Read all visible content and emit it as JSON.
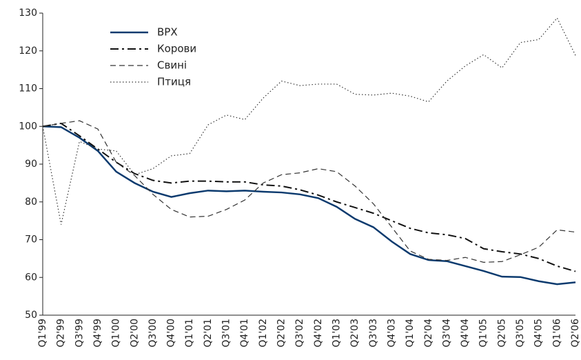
{
  "chart_data": {
    "type": "line",
    "categories": [
      "Q1'99",
      "Q2'99",
      "Q3'99",
      "Q4'99",
      "Q1'00",
      "Q2'00",
      "Q3'00",
      "Q4'00",
      "Q1'01",
      "Q2'01",
      "Q3'01",
      "Q4'01",
      "Q1'02",
      "Q2'02",
      "Q3'02",
      "Q4'02",
      "Q1'03",
      "Q2'03",
      "Q3'03",
      "Q4'03",
      "Q1'04",
      "Q2'04",
      "Q3'04",
      "Q4'04",
      "Q1'05",
      "Q2'05",
      "Q3'05",
      "Q4'05",
      "Q1'06",
      "Q2'06"
    ],
    "ylim": [
      50,
      130
    ],
    "yticks": [
      50,
      60,
      70,
      80,
      90,
      100,
      110,
      120,
      130
    ],
    "series": [
      {
        "name": "ВРХ",
        "color": "#0b3a6e",
        "style": "solid",
        "values": [
          100,
          99.8,
          97,
          93.5,
          88,
          85,
          82.7,
          81.3,
          82.3,
          83,
          82.8,
          83,
          82.7,
          82.5,
          82,
          81,
          78.7,
          75.5,
          73.3,
          69.5,
          66.2,
          64.6,
          64.3,
          63,
          61.7,
          60.2,
          60.1,
          59,
          58.2,
          58.7
        ]
      },
      {
        "name": "Корови",
        "color": "#111111",
        "style": "dashdot",
        "values": [
          100,
          100.8,
          97.5,
          94,
          90.5,
          87.5,
          85.7,
          85,
          85.5,
          85.5,
          85.3,
          85.3,
          84.5,
          84.2,
          83.2,
          81.8,
          80,
          78.5,
          77,
          75,
          73,
          71.8,
          71.3,
          70.3,
          67.6,
          66.8,
          66.2,
          65,
          63,
          61.6
        ]
      },
      {
        "name": "Свині",
        "color": "#333333",
        "style": "dashed",
        "values": [
          100,
          100.8,
          101.5,
          99.3,
          90.5,
          87,
          82,
          78,
          76,
          76.2,
          78,
          80.5,
          85,
          87.2,
          87.7,
          88.8,
          88,
          84.2,
          79.5,
          73.3,
          67,
          64.8,
          64.5,
          65.3,
          64,
          64.2,
          66,
          68,
          72.6,
          72
        ]
      },
      {
        "name": "Птиця",
        "color": "#333333",
        "style": "dotted",
        "values": [
          100,
          74,
          96,
          94,
          93.5,
          87.2,
          88.8,
          92.2,
          92.8,
          100.4,
          103,
          101.8,
          107.5,
          112,
          110.8,
          111.2,
          111.2,
          108.5,
          108.3,
          108.8,
          108,
          106.5,
          112,
          116,
          119,
          115.5,
          122.2,
          123,
          128.7,
          118.8
        ]
      }
    ]
  }
}
